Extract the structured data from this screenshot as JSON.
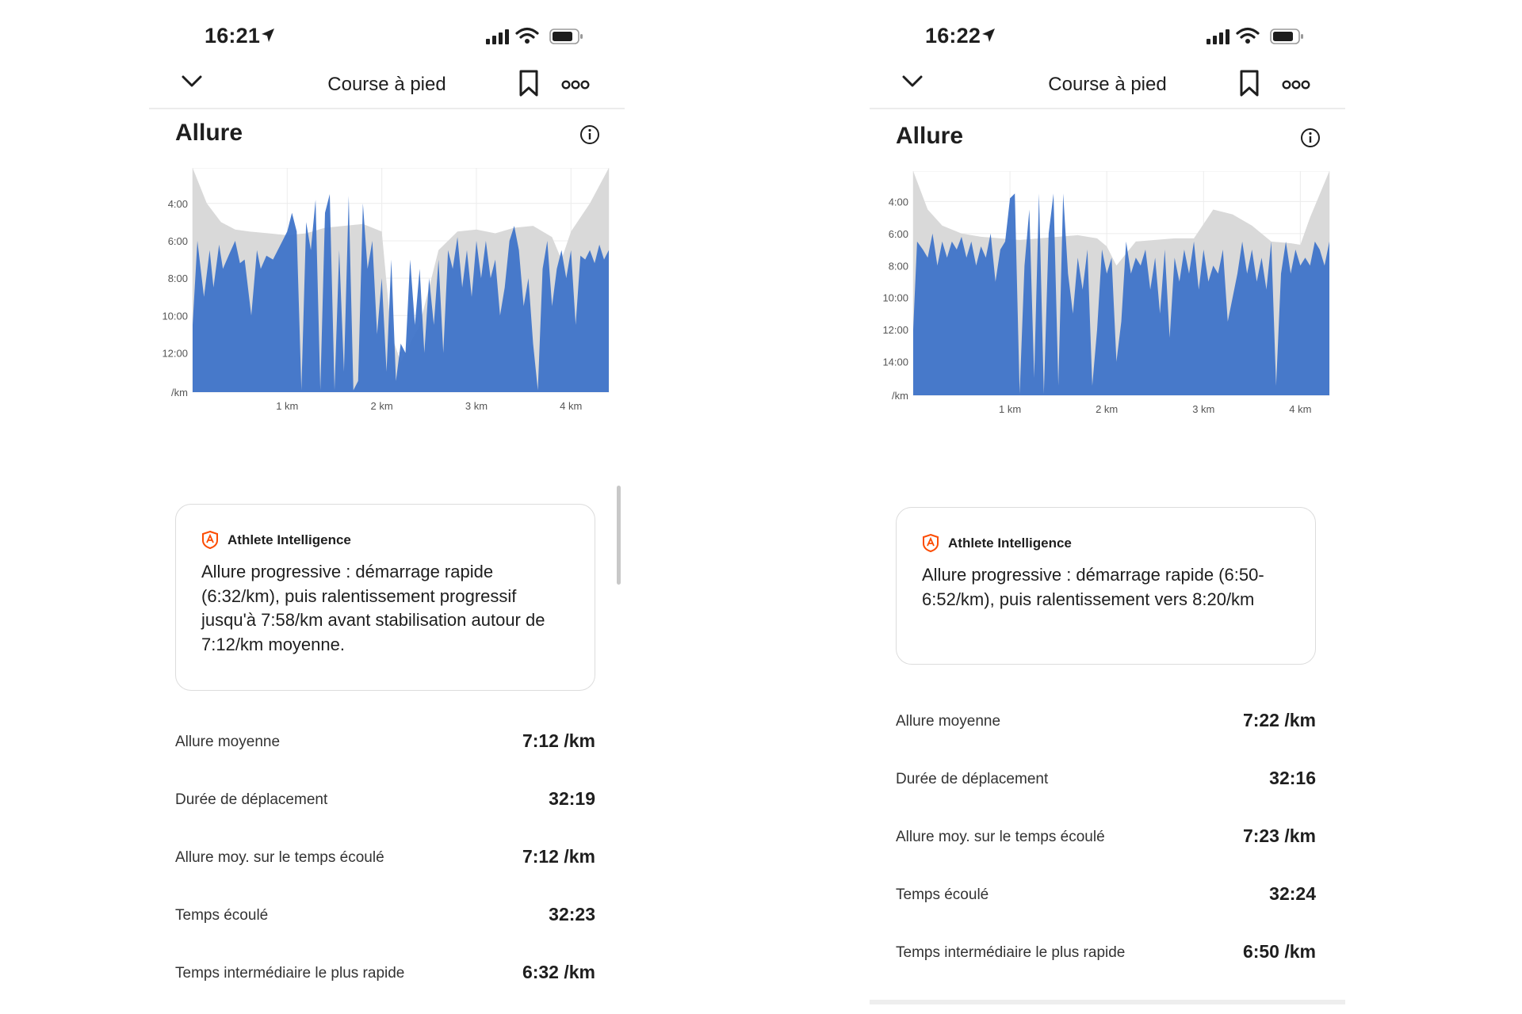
{
  "screens": [
    {
      "status": {
        "time": "16:21"
      },
      "nav": {
        "title": "Course à pied"
      },
      "section_title": "Allure",
      "ai": {
        "label": "Athlete Intelligence",
        "text": "Allure progressive : démarrage rapide (6:32/km), puis ralentissement progressif jusqu'à 7:58/km avant stabilisation autour de 7:12/km moyenne."
      },
      "stats": [
        {
          "label": "Allure moyenne",
          "value": "7:12 /km"
        },
        {
          "label": "Durée de déplacement",
          "value": "32:19"
        },
        {
          "label": "Allure moy. sur le temps écoulé",
          "value": "7:12 /km"
        },
        {
          "label": "Temps écoulé",
          "value": "32:23"
        },
        {
          "label": "Temps intermédiaire le plus rapide",
          "value": "6:32 /km"
        }
      ]
    },
    {
      "status": {
        "time": "16:22"
      },
      "nav": {
        "title": "Course à pied"
      },
      "section_title": "Allure",
      "ai": {
        "label": "Athlete Intelligence",
        "text": "Allure progressive : démarrage rapide (6:50-6:52/km), puis ralentissement vers 8:20/km"
      },
      "stats": [
        {
          "label": "Allure moyenne",
          "value": "7:22 /km"
        },
        {
          "label": "Durée de déplacement",
          "value": "32:16"
        },
        {
          "label": "Allure moy. sur le temps écoulé",
          "value": "7:23 /km"
        },
        {
          "label": "Temps écoulé",
          "value": "32:24"
        },
        {
          "label": "Temps intermédiaire le plus rapide",
          "value": "6:50 /km"
        }
      ]
    }
  ],
  "colors": {
    "pace_fill": "#3f74c9",
    "elevation_fill": "#d9d9d9",
    "accent": "#fc4c02"
  },
  "chart_data": [
    {
      "type": "area",
      "y_unit_label": "/km",
      "y_tick_labels": [
        "4:00",
        "6:00",
        "8:00",
        "10:00",
        "12:00"
      ],
      "y_ticks_minutes": [
        4,
        6,
        8,
        10,
        12
      ],
      "ylim_minutes": [
        2.1,
        14.1
      ],
      "x_tick_labels": [
        "1 km",
        "2 km",
        "3 km",
        "4 km"
      ],
      "x_ticks_km": [
        1,
        2,
        3,
        4
      ],
      "xlim_km": [
        0,
        4.4
      ],
      "series": [
        {
          "role": "elevation",
          "x_km": [
            0,
            0.15,
            0.3,
            0.45,
            0.6,
            0.8,
            1.0,
            1.2,
            1.4,
            1.6,
            1.8,
            2.0,
            2.1,
            2.2,
            2.4,
            2.6,
            2.8,
            3.0,
            3.2,
            3.4,
            3.6,
            3.8,
            3.9,
            4.0,
            4.2,
            4.4
          ],
          "values_minutes": [
            2.1,
            4.0,
            5.0,
            5.4,
            5.5,
            5.6,
            5.7,
            5.6,
            5.3,
            5.2,
            5.1,
            5.5,
            11.0,
            12.5,
            10.5,
            6.5,
            5.5,
            5.4,
            5.6,
            5.3,
            5.2,
            5.8,
            7.0,
            5.5,
            4.0,
            2.1
          ]
        },
        {
          "role": "pace",
          "x_km": [
            0,
            0.05,
            0.12,
            0.18,
            0.22,
            0.28,
            0.32,
            0.38,
            0.45,
            0.5,
            0.55,
            0.62,
            0.68,
            0.72,
            0.78,
            0.85,
            0.9,
            0.95,
            1.0,
            1.05,
            1.1,
            1.15,
            1.2,
            1.25,
            1.3,
            1.35,
            1.4,
            1.45,
            1.5,
            1.55,
            1.6,
            1.65,
            1.7,
            1.75,
            1.8,
            1.85,
            1.9,
            1.95,
            2.0,
            2.05,
            2.1,
            2.15,
            2.2,
            2.25,
            2.3,
            2.35,
            2.4,
            2.45,
            2.5,
            2.55,
            2.6,
            2.65,
            2.7,
            2.75,
            2.8,
            2.85,
            2.9,
            2.95,
            3.0,
            3.05,
            3.1,
            3.15,
            3.2,
            3.25,
            3.3,
            3.35,
            3.4,
            3.45,
            3.5,
            3.55,
            3.6,
            3.65,
            3.7,
            3.75,
            3.8,
            3.85,
            3.9,
            3.95,
            4.0,
            4.05,
            4.1,
            4.15,
            4.2,
            4.25,
            4.3,
            4.35,
            4.4
          ],
          "values_minutes": [
            10.5,
            6.0,
            9.0,
            6.5,
            8.5,
            6.2,
            7.5,
            6.8,
            6.0,
            7.2,
            7.0,
            10.0,
            6.5,
            7.5,
            6.8,
            7.0,
            6.5,
            6.0,
            5.5,
            4.5,
            5.5,
            14.0,
            5.0,
            6.5,
            3.8,
            14.0,
            4.5,
            3.5,
            14.0,
            6.5,
            13.0,
            3.6,
            14.0,
            13.5,
            4.0,
            7.5,
            6.0,
            11.0,
            8.0,
            13.0,
            7.0,
            13.5,
            11.5,
            12.0,
            7.0,
            10.5,
            7.5,
            12.0,
            8.0,
            10.5,
            7.0,
            12.0,
            6.5,
            7.5,
            5.8,
            8.5,
            6.5,
            9.0,
            6.0,
            8.0,
            6.0,
            8.0,
            7.0,
            10.0,
            8.5,
            6.0,
            5.2,
            6.5,
            9.5,
            8.0,
            11.5,
            14.0,
            7.5,
            6.0,
            9.5,
            7.5,
            6.5,
            8.0,
            6.5,
            10.5,
            6.8,
            7.0,
            6.5,
            7.2,
            6.2,
            7.0,
            6.5
          ]
        }
      ]
    },
    {
      "type": "area",
      "y_unit_label": "/km",
      "y_tick_labels": [
        "4:00",
        "6:00",
        "8:00",
        "10:00",
        "12:00",
        "14:00"
      ],
      "y_ticks_minutes": [
        4,
        6,
        8,
        10,
        12,
        14
      ],
      "ylim_minutes": [
        2.1,
        16.1
      ],
      "x_tick_labels": [
        "1 km",
        "2 km",
        "3 km",
        "4 km"
      ],
      "x_ticks_km": [
        1,
        2,
        3,
        4
      ],
      "xlim_km": [
        0,
        4.3
      ],
      "series": [
        {
          "role": "elevation",
          "x_km": [
            0,
            0.15,
            0.3,
            0.5,
            0.7,
            0.9,
            1.1,
            1.3,
            1.5,
            1.7,
            1.9,
            2.0,
            2.1,
            2.3,
            2.5,
            2.7,
            2.9,
            3.1,
            3.3,
            3.5,
            3.7,
            3.9,
            4.0,
            4.1,
            4.3
          ],
          "values_minutes": [
            2.1,
            4.5,
            5.5,
            6.0,
            6.2,
            6.3,
            6.4,
            6.3,
            6.2,
            6.1,
            6.3,
            6.8,
            8.0,
            6.5,
            6.4,
            6.3,
            6.3,
            4.5,
            4.8,
            5.5,
            6.5,
            6.6,
            6.7,
            5.0,
            2.1
          ]
        },
        {
          "role": "pace",
          "x_km": [
            0,
            0.04,
            0.1,
            0.15,
            0.2,
            0.25,
            0.3,
            0.35,
            0.4,
            0.45,
            0.5,
            0.55,
            0.6,
            0.65,
            0.7,
            0.75,
            0.8,
            0.85,
            0.9,
            0.95,
            1.0,
            1.05,
            1.1,
            1.15,
            1.2,
            1.25,
            1.3,
            1.35,
            1.4,
            1.45,
            1.5,
            1.55,
            1.6,
            1.65,
            1.7,
            1.75,
            1.8,
            1.85,
            1.9,
            1.95,
            2.0,
            2.05,
            2.1,
            2.15,
            2.2,
            2.25,
            2.3,
            2.35,
            2.4,
            2.45,
            2.5,
            2.55,
            2.6,
            2.65,
            2.7,
            2.75,
            2.8,
            2.85,
            2.9,
            2.95,
            3.0,
            3.05,
            3.1,
            3.15,
            3.2,
            3.25,
            3.3,
            3.35,
            3.4,
            3.45,
            3.5,
            3.55,
            3.6,
            3.65,
            3.7,
            3.75,
            3.8,
            3.85,
            3.9,
            3.95,
            4.0,
            4.05,
            4.1,
            4.15,
            4.2,
            4.25,
            4.3
          ],
          "values_minutes": [
            12.0,
            6.5,
            7.0,
            7.5,
            6.0,
            8.0,
            6.5,
            7.5,
            6.5,
            7.0,
            6.2,
            7.5,
            6.5,
            8.0,
            6.8,
            7.5,
            6.0,
            9.0,
            7.0,
            6.5,
            3.8,
            3.5,
            16.0,
            8.0,
            4.5,
            15.0,
            3.5,
            16.0,
            6.0,
            3.5,
            15.5,
            3.5,
            8.5,
            11.0,
            7.5,
            9.5,
            7.0,
            15.5,
            12.0,
            7.0,
            8.5,
            7.5,
            14.0,
            11.5,
            6.5,
            8.5,
            7.5,
            8.0,
            7.0,
            9.5,
            7.5,
            11.0,
            7.0,
            12.5,
            7.5,
            9.0,
            7.0,
            8.5,
            6.5,
            9.5,
            7.0,
            9.0,
            8.0,
            8.5,
            7.0,
            11.5,
            10.0,
            8.5,
            6.5,
            8.5,
            7.0,
            9.0,
            7.5,
            9.5,
            6.5,
            15.5,
            8.5,
            6.5,
            8.5,
            7.0,
            8.0,
            7.5,
            8.0,
            6.5,
            7.0,
            8.0,
            6.5
          ]
        }
      ]
    }
  ]
}
